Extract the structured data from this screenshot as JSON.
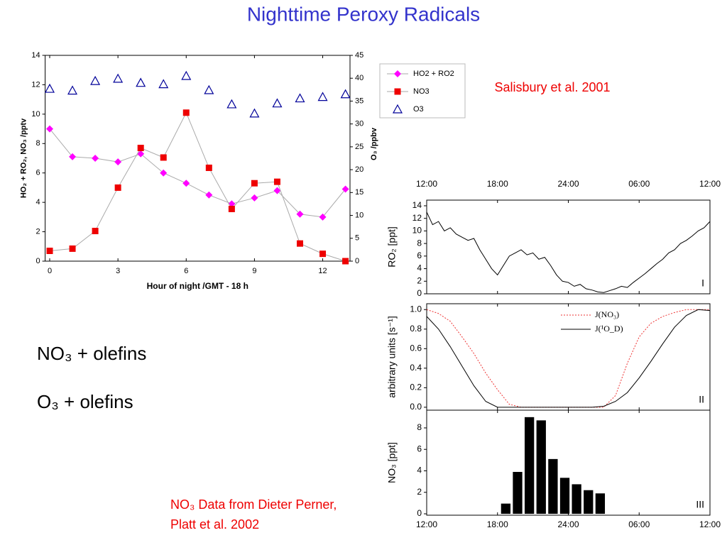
{
  "slide": {
    "title": "Nighttime Peroxy Radicals",
    "citation": "Salisbury et al. 2001",
    "reactions": [
      "NO₃ + olefins",
      "O₃ + olefins"
    ],
    "note": [
      "NO₃ Data from Dieter Perner,",
      "Platt et al. 2002"
    ]
  },
  "chart_data": [
    {
      "type": "line",
      "xlabel": "Hour of night /GMT - 18 h",
      "ylabel": "HO₂ + RO₂, NO₃ /pptv",
      "y2label": "O₃ /ppbv",
      "x": [
        0,
        1,
        2,
        3,
        4,
        5,
        6,
        7,
        8,
        9,
        10,
        11,
        12,
        13
      ],
      "xlim": [
        -0.2,
        13.2
      ],
      "xticks": [
        0,
        3,
        6,
        9,
        12
      ],
      "ylim": [
        0,
        14
      ],
      "yticks": [
        0,
        2,
        4,
        6,
        8,
        10,
        12,
        14
      ],
      "y2lim": [
        0,
        45
      ],
      "y2ticks": [
        0,
        5,
        10,
        15,
        20,
        25,
        30,
        35,
        40,
        45
      ],
      "connect_color": "#aaaaaa",
      "series": [
        {
          "name": "HO2 + RO2",
          "color": "#ff00ff",
          "marker": "diamond",
          "connect": true,
          "values": [
            9.0,
            7.1,
            7.0,
            6.75,
            7.3,
            6.0,
            5.3,
            4.5,
            3.9,
            4.3,
            4.8,
            3.2,
            3.0,
            4.9
          ]
        },
        {
          "name": "NO3",
          "color": "#ee0000",
          "marker": "square",
          "connect": true,
          "values": [
            0.7,
            0.85,
            2.05,
            5.0,
            7.7,
            7.05,
            10.1,
            6.35,
            3.55,
            5.3,
            5.4,
            1.2,
            0.5,
            0.0
          ]
        },
        {
          "name": "O3",
          "color": "#000099",
          "marker": "triangle",
          "connect": false,
          "axis": "y2",
          "values": [
            37.7,
            37.3,
            39.4,
            39.9,
            39.0,
            38.7,
            40.5,
            37.4,
            34.3,
            32.3,
            34.5,
            35.6,
            35.9,
            36.5
          ]
        }
      ]
    },
    {
      "type": "line",
      "ylabel": "RO₂ [ppt]",
      "panel_label": "I",
      "xlim": [
        12,
        36
      ],
      "xticks": [
        {
          "value": 12,
          "label": "12:00"
        },
        {
          "value": 18,
          "label": "18:00"
        },
        {
          "value": 24,
          "label": "24:00"
        },
        {
          "value": 30,
          "label": "06:00"
        },
        {
          "value": 36,
          "label": "12:00"
        }
      ],
      "xtick_side": "top",
      "ylim": [
        0,
        14.9
      ],
      "yticks": [
        0,
        2,
        4,
        6,
        8,
        10,
        12,
        14
      ],
      "x": [
        12,
        12.5,
        13,
        13.5,
        14,
        14.5,
        15,
        15.5,
        16,
        16.5,
        17,
        17.5,
        18,
        18.5,
        19,
        19.5,
        20,
        20.5,
        21,
        21.5,
        22,
        22.5,
        23,
        23.5,
        24,
        24.5,
        25,
        25.5,
        26,
        26.5,
        27,
        27.5,
        28,
        28.5,
        29,
        29.5,
        30,
        30.5,
        31,
        31.5,
        32,
        32.5,
        33,
        33.5,
        34,
        34.5,
        35,
        35.5,
        36
      ],
      "series": [
        {
          "color": "#000000",
          "values": [
            13,
            11,
            11.5,
            10,
            10.5,
            9.5,
            9,
            8.5,
            8.8,
            7,
            5.5,
            4,
            3,
            4.5,
            6,
            6.5,
            7,
            6.2,
            6.5,
            5.5,
            5.8,
            4.5,
            3,
            2,
            1.8,
            1.2,
            1.5,
            0.8,
            0.6,
            0.3,
            0.2,
            0.5,
            0.8,
            1.2,
            1.0,
            1.8,
            2.5,
            3.2,
            4,
            4.8,
            5.5,
            6.5,
            7,
            8,
            8.5,
            9.2,
            10,
            10.5,
            11.5
          ]
        }
      ]
    },
    {
      "type": "line",
      "ylabel": "arbitrary units [s⁻¹]",
      "panel_label": "II",
      "xlim": [
        12,
        36
      ],
      "xticks": [
        {
          "value": 12,
          "label": "12:00"
        },
        {
          "value": 18,
          "label": "18:00"
        },
        {
          "value": 24,
          "label": "24:00"
        },
        {
          "value": 30,
          "label": "06:00"
        },
        {
          "value": 36,
          "label": "12:00"
        }
      ],
      "xtick_side": "none",
      "ylim": [
        -0.03,
        1.06
      ],
      "yticks": [
        {
          "value": 0,
          "label": "0.0"
        },
        {
          "value": 0.2,
          "label": "0.2"
        },
        {
          "value": 0.4,
          "label": "0.4"
        },
        {
          "value": 0.6,
          "label": "0.6"
        },
        {
          "value": 0.8,
          "label": "0.8"
        },
        {
          "value": 1,
          "label": "1.0"
        }
      ],
      "x": [
        12,
        13,
        14,
        15,
        16,
        17,
        18,
        19,
        20,
        21,
        22,
        23,
        24,
        25,
        26,
        27,
        28,
        29,
        30,
        31,
        32,
        33,
        34,
        35,
        36
      ],
      "series": [
        {
          "name": "J(NO₃)",
          "color": "#ee3333",
          "dash": "2,2",
          "values": [
            1.0,
            0.96,
            0.88,
            0.72,
            0.55,
            0.35,
            0.18,
            0.03,
            0,
            0,
            0,
            0,
            0,
            0,
            0,
            0,
            0.12,
            0.45,
            0.72,
            0.86,
            0.93,
            0.97,
            1.0,
            1.0,
            1.0
          ]
        },
        {
          "name": "J(¹O_D)",
          "color": "#000000",
          "dash": "none",
          "values": [
            0.93,
            0.8,
            0.62,
            0.42,
            0.22,
            0.06,
            0,
            0,
            0,
            0,
            0,
            0,
            0,
            0,
            0,
            0.01,
            0.06,
            0.15,
            0.3,
            0.47,
            0.65,
            0.82,
            0.94,
            1.0,
            0.99
          ]
        }
      ]
    },
    {
      "type": "bar",
      "ylabel": "NO₃ [ppt]",
      "panel_label": "III",
      "xlim": [
        12,
        36
      ],
      "xticks": [
        {
          "value": 12,
          "label": "12:00"
        },
        {
          "value": 18,
          "label": "18:00"
        },
        {
          "value": 24,
          "label": "24:00"
        },
        {
          "value": 30,
          "label": "06:00"
        },
        {
          "value": 36,
          "label": "12:00"
        }
      ],
      "xtick_side": "bottom",
      "ylim": [
        -0.13,
        9.65
      ],
      "yticks": [
        0,
        2,
        4,
        6,
        8
      ],
      "x": [
        18.7,
        19.7,
        20.7,
        21.7,
        22.7,
        23.7,
        24.7,
        25.7,
        26.7
      ],
      "color": "#000000",
      "values": [
        0.95,
        3.9,
        9.0,
        8.7,
        5.1,
        3.35,
        2.75,
        2.2,
        1.9
      ]
    }
  ]
}
